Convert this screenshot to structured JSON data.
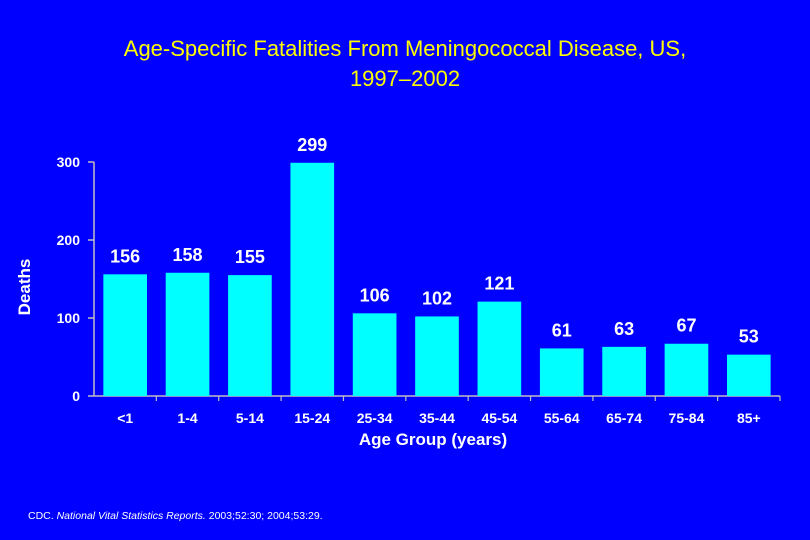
{
  "slide": {
    "title_line1": "Age-Specific Fatalities From Meningococcal Disease, US,",
    "title_line2": "1997–2002",
    "citation_prefix": "CDC. ",
    "citation_journal": "National Vital Statistics Reports.",
    "citation_suffix": " 2003;52:30; 2004;53:29."
  },
  "colors": {
    "background": "#0000ff",
    "title": "#ffff00",
    "bar": "#00ffff",
    "text": "#ffffff",
    "axis": "#c0c0c0"
  },
  "chart_data": {
    "type": "bar",
    "title": "Age-Specific Fatalities From Meningococcal Disease, US, 1997–2002",
    "xlabel": "Age Group (years)",
    "ylabel": "Deaths",
    "categories": [
      "<1",
      "1-4",
      "5-14",
      "15-24",
      "25-34",
      "35-44",
      "45-54",
      "55-64",
      "65-74",
      "75-84",
      "85+"
    ],
    "values": [
      156,
      158,
      155,
      299,
      106,
      102,
      121,
      61,
      63,
      67,
      53
    ],
    "yticks": [
      0,
      100,
      200,
      300
    ],
    "ylim": [
      0,
      300
    ],
    "grid": false,
    "legend": "none"
  }
}
